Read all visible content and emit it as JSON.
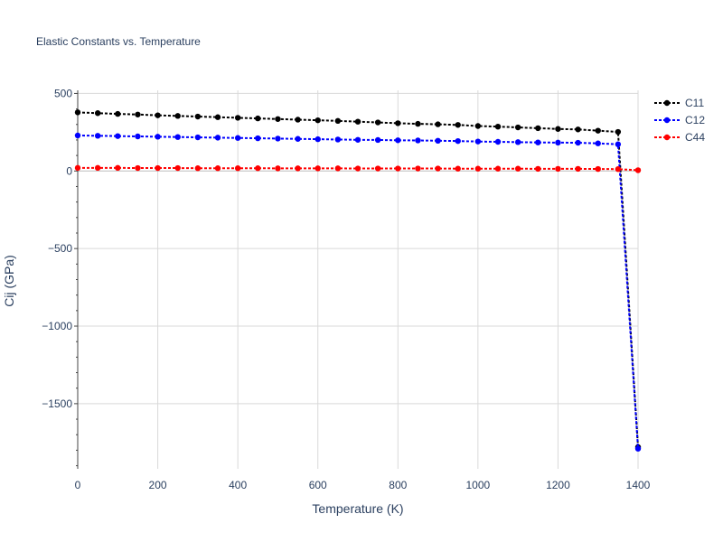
{
  "chart_data": {
    "type": "line",
    "title": "Elastic Constants vs. Temperature",
    "xlabel": "Temperature (K)",
    "ylabel": "Cij (GPa)",
    "xlim": [
      0,
      1400
    ],
    "ylim": [
      -1920,
      520
    ],
    "x_ticks": [
      0,
      200,
      400,
      600,
      800,
      1000,
      1200,
      1400
    ],
    "y_ticks": [
      500,
      0,
      -500,
      -1000,
      -1500
    ],
    "y_tick_labels": [
      "500",
      "0",
      "−500",
      "−1000",
      "−1500"
    ],
    "grid": true,
    "legend_position": "top-right",
    "x": [
      0,
      50,
      100,
      150,
      200,
      250,
      300,
      350,
      400,
      450,
      500,
      550,
      600,
      650,
      700,
      750,
      800,
      850,
      900,
      950,
      1000,
      1050,
      1100,
      1150,
      1200,
      1250,
      1300,
      1350,
      1400
    ],
    "series": [
      {
        "name": "C11",
        "color": "#000000",
        "values": [
          378,
          373,
          368,
          364,
          359,
          355,
          351,
          347,
          343,
          339,
          335,
          331,
          327,
          323,
          318,
          313,
          308,
          304,
          301,
          297,
          290,
          286,
          281,
          276,
          271,
          268,
          260,
          252,
          -1780
        ]
      },
      {
        "name": "C12",
        "color": "#0000ff",
        "values": [
          229,
          227,
          225,
          223,
          221,
          219,
          217,
          215,
          213,
          211,
          209,
          207,
          205,
          203,
          201,
          200,
          198,
          197,
          195,
          193,
          190,
          188,
          186,
          184,
          183,
          182,
          178,
          172,
          -1790
        ]
      },
      {
        "name": "C44",
        "color": "#ff0000",
        "values": [
          20,
          20,
          20,
          19,
          19,
          19,
          18,
          18,
          18,
          18,
          17,
          17,
          17,
          17,
          16,
          16,
          16,
          16,
          16,
          15,
          15,
          15,
          15,
          14,
          14,
          14,
          13,
          12,
          5
        ]
      }
    ]
  }
}
